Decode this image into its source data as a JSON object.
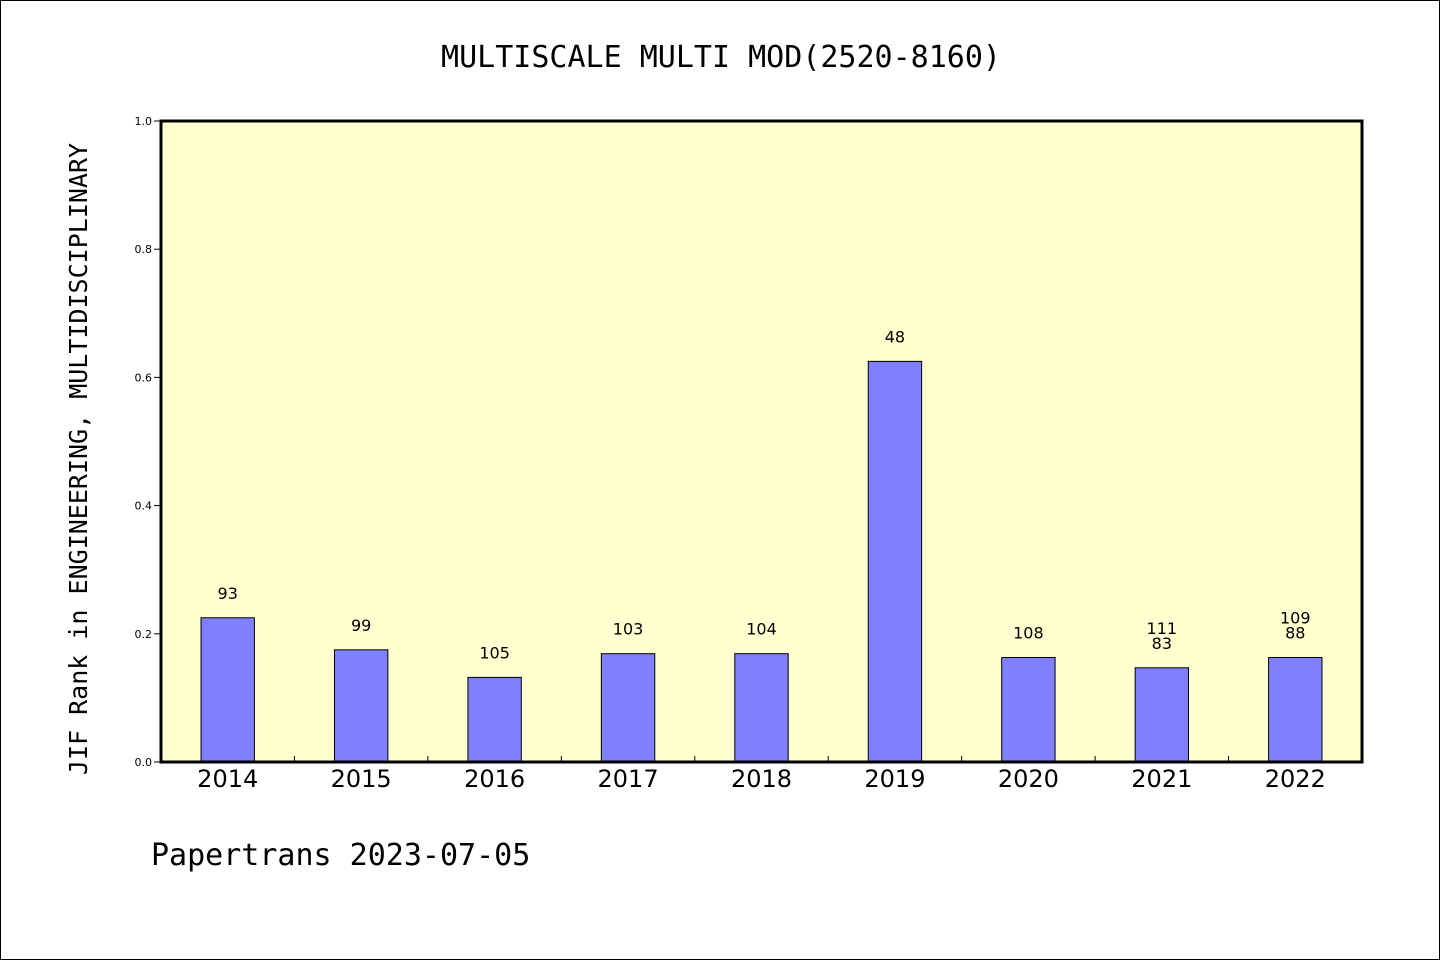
{
  "chart_data": {
    "type": "bar",
    "title": "MULTISCALE MULTI MOD(2520-8160)",
    "xlabel": "",
    "ylabel": "JIF Rank in ENGINEERING, MULTIDISCIPLINARY",
    "ylim": [
      0,
      1.0
    ],
    "yticks": [
      "0.0",
      "0.2",
      "0.4",
      "0.6",
      "0.8",
      "1.0"
    ],
    "categories": [
      "2014",
      "2015",
      "2016",
      "2017",
      "2018",
      "2019",
      "2020",
      "2021",
      "2022"
    ],
    "values": [
      0.225,
      0.175,
      0.132,
      0.169,
      0.169,
      0.625,
      0.163,
      0.147,
      0.163
    ],
    "bar_labels": [
      [
        "93"
      ],
      [
        "99"
      ],
      [
        "105"
      ],
      [
        "103"
      ],
      [
        "104"
      ],
      [
        "48"
      ],
      [
        "108"
      ],
      [
        "111",
        "83"
      ],
      [
        "109",
        "88"
      ]
    ],
    "grid": false,
    "legend": "none",
    "colors": {
      "plot_background": "#ffffd0",
      "bar_fill": "#8080ff",
      "bar_stroke": "#000000",
      "axis": "#000000"
    }
  },
  "footer": "Papertrans 2023-07-05"
}
